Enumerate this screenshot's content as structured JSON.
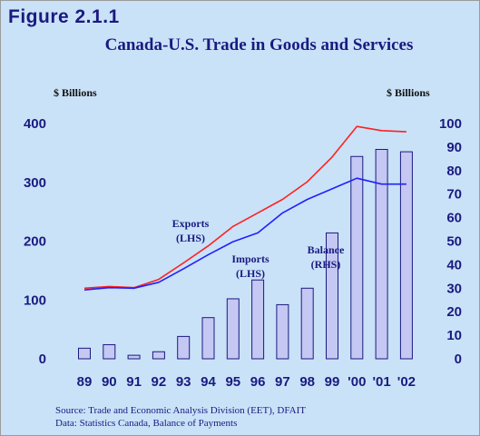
{
  "figure_label": "Figure 2.1.1",
  "chart_data": {
    "type": "bar+line",
    "title": "Canada-U.S. Trade in Goods and Services",
    "left_axis_label": "$ Billions",
    "right_axis_label": "$ Billions",
    "categories": [
      "89",
      "90",
      "91",
      "92",
      "93",
      "94",
      "95",
      "96",
      "97",
      "98",
      "99",
      "'00",
      "'01",
      "'02"
    ],
    "y_left": {
      "ticks": [
        0,
        100,
        200,
        300,
        400
      ],
      "lim": [
        0,
        400
      ]
    },
    "y_right": {
      "ticks": [
        0,
        10,
        20,
        30,
        40,
        50,
        60,
        70,
        80,
        90,
        100
      ],
      "lim": [
        0,
        100
      ]
    },
    "grid": false,
    "bars": {
      "name": "Balance",
      "axis": "right",
      "color": "#c4c8f2",
      "values": [
        4.5,
        6,
        1.5,
        3,
        9.5,
        17.5,
        25.5,
        33.5,
        23,
        30,
        53.5,
        86,
        89,
        88
      ]
    },
    "lines": [
      {
        "name": "Exports",
        "axis": "left",
        "color": "#ff2020",
        "values": [
          120,
          123,
          121,
          135,
          163,
          192,
          225,
          248,
          271,
          301,
          343,
          395,
          388,
          386
        ]
      },
      {
        "name": "Imports",
        "axis": "left",
        "color": "#2020ff",
        "values": [
          117,
          121,
          120,
          130,
          153,
          177,
          199,
          214,
          248,
          271,
          289,
          307,
          297,
          297
        ]
      }
    ],
    "annotations": [
      {
        "series": "Exports",
        "line1": "Exports",
        "line2": "(LHS)"
      },
      {
        "series": "Imports",
        "line1": "Imports",
        "line2": "(LHS)"
      },
      {
        "series": "Balance",
        "line1": "Balance",
        "line2": "(RHS)"
      }
    ]
  },
  "footnotes": {
    "source": "Source: Trade and Economic Analysis Division (EET), DFAIT",
    "data": "Data: Statistics Canada, Balance of Payments"
  }
}
